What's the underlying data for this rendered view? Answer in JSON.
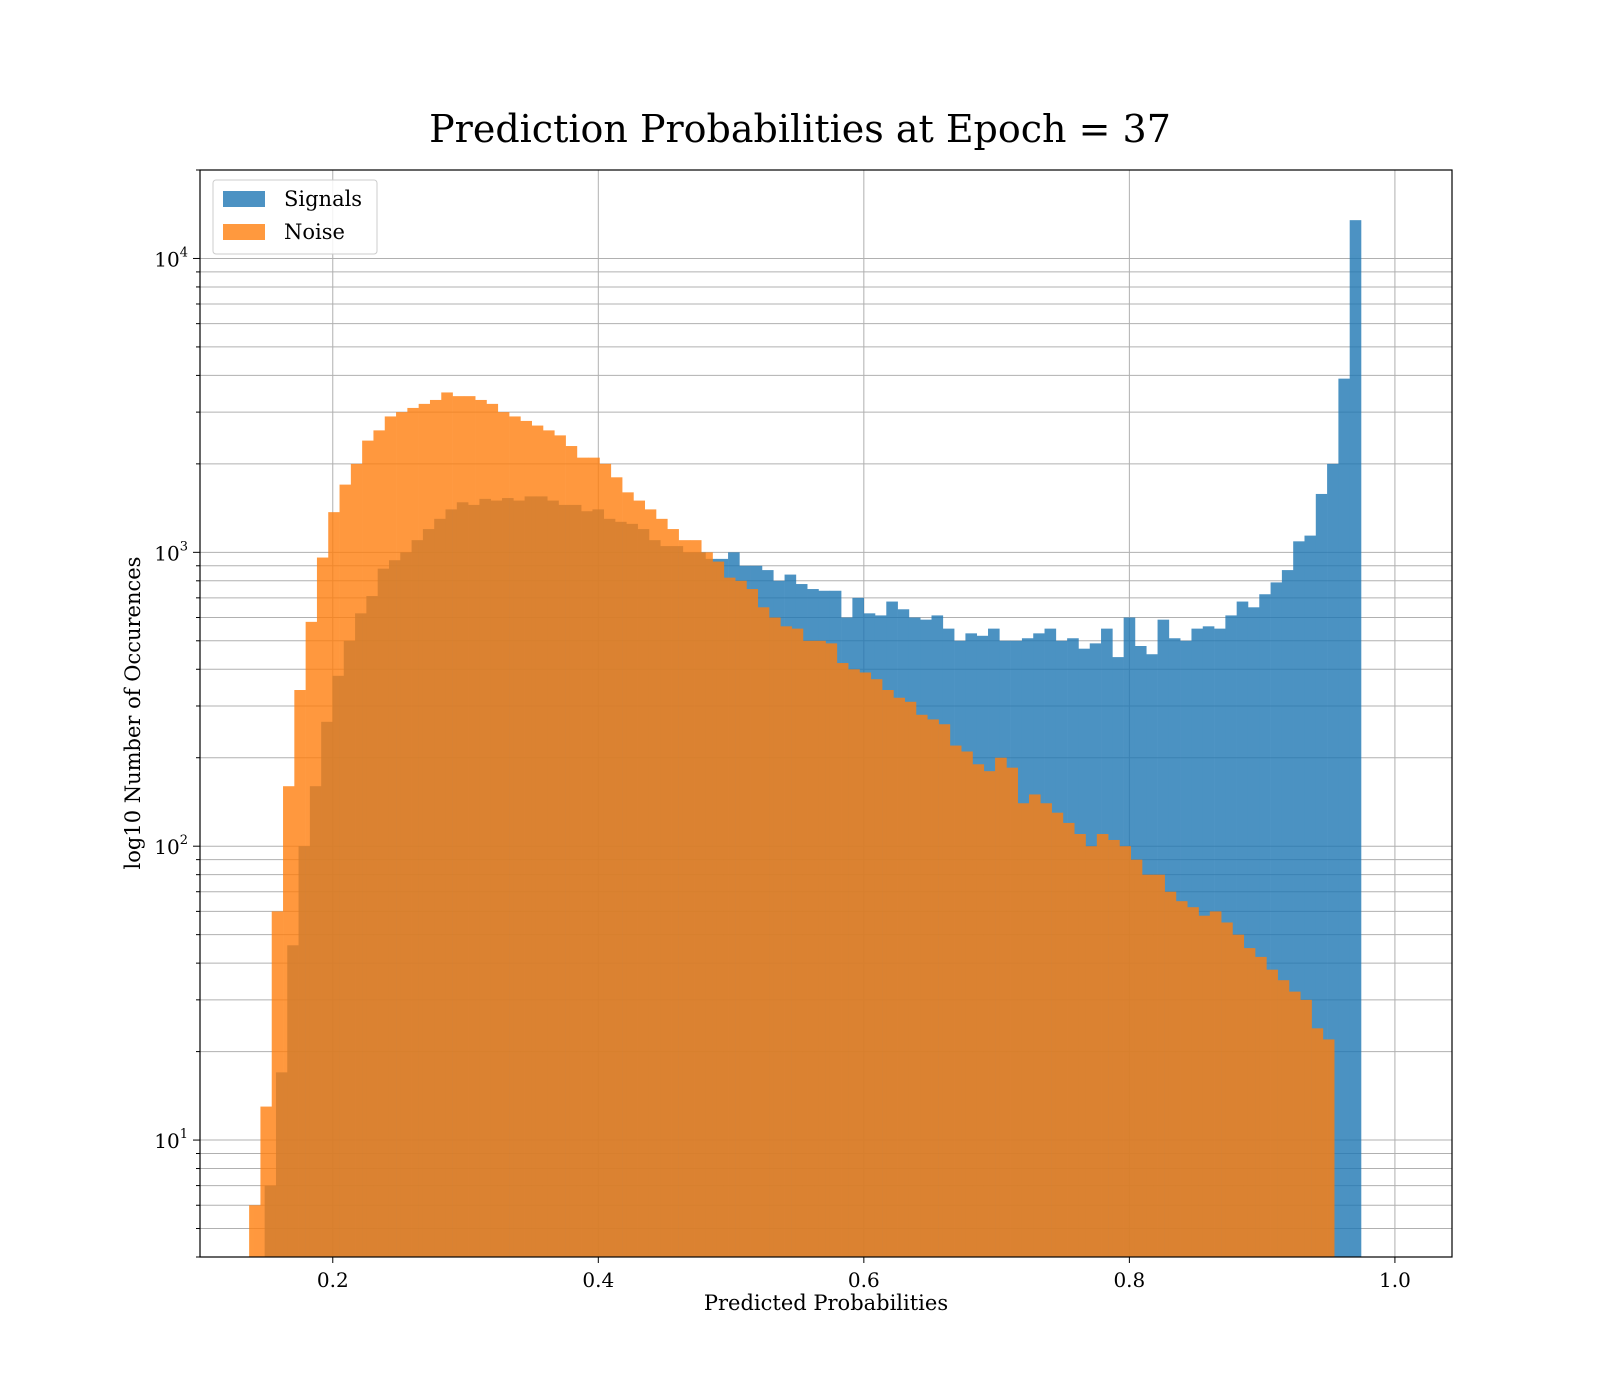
{
  "chart_data": {
    "type": "bar",
    "title": "Prediction Probabilities at Epoch = 37",
    "xlabel": "Predicted Probabilities",
    "ylabel": "log10 Number of Occurences",
    "yscale": "log",
    "xlim": [
      0.1,
      1.043
    ],
    "ylim": [
      4,
      20000
    ],
    "grid": true,
    "legend_position": "top-left",
    "xticks": [
      0.2,
      0.4,
      0.6,
      0.8,
      1.0
    ],
    "xtick_labels": [
      "0.2",
      "0.4",
      "0.6",
      "0.8",
      "1.0"
    ],
    "yticks": [
      10,
      100,
      1000,
      10000
    ],
    "ytick_labels": [
      {
        "base": "10",
        "exp": "1"
      },
      {
        "base": "10",
        "exp": "2"
      },
      {
        "base": "10",
        "exp": "3"
      },
      {
        "base": "10",
        "exp": "4"
      }
    ],
    "colors": {
      "Signals": "#1f77b4",
      "Noise": "#ff7f0e"
    },
    "series": [
      {
        "name": "Signals",
        "bin_start": 0.1487,
        "bin_width": 0.008513,
        "values": [
          7,
          17,
          46,
          100,
          160,
          265,
          380,
          500,
          620,
          710,
          880,
          940,
          1000,
          1100,
          1200,
          1300,
          1400,
          1480,
          1450,
          1520,
          1500,
          1530,
          1500,
          1550,
          1550,
          1500,
          1450,
          1450,
          1380,
          1400,
          1300,
          1270,
          1250,
          1200,
          1100,
          1050,
          1050,
          1000,
          1000,
          950,
          950,
          1000,
          900,
          900,
          870,
          800,
          840,
          780,
          750,
          740,
          740,
          600,
          700,
          620,
          610,
          680,
          640,
          600,
          590,
          610,
          550,
          500,
          530,
          520,
          550,
          500,
          500,
          510,
          530,
          550,
          500,
          510,
          470,
          490,
          550,
          440,
          600,
          480,
          450,
          590,
          510,
          500,
          550,
          560,
          550,
          610,
          680,
          650,
          720,
          790,
          870,
          1090,
          1140,
          1580,
          2000,
          3900,
          13500
        ]
      },
      {
        "name": "Noise",
        "bin_start": 0.137,
        "bin_width": 0.008513,
        "values": [
          6,
          13,
          60,
          160,
          340,
          580,
          960,
          1370,
          1700,
          2000,
          2400,
          2600,
          2900,
          3000,
          3100,
          3200,
          3300,
          3500,
          3400,
          3400,
          3300,
          3200,
          3000,
          2900,
          2800,
          2700,
          2600,
          2500,
          2300,
          2100,
          2100,
          2000,
          1800,
          1600,
          1500,
          1400,
          1300,
          1200,
          1100,
          1100,
          1000,
          930,
          820,
          800,
          750,
          650,
          600,
          560,
          550,
          500,
          500,
          490,
          420,
          400,
          390,
          370,
          340,
          320,
          310,
          280,
          270,
          260,
          220,
          210,
          190,
          180,
          200,
          185,
          140,
          150,
          140,
          130,
          120,
          110,
          100,
          110,
          105,
          100,
          90,
          80,
          80,
          70,
          65,
          62,
          58,
          60,
          55,
          50,
          45,
          42,
          38,
          35,
          32,
          30,
          24,
          22
        ]
      }
    ]
  }
}
